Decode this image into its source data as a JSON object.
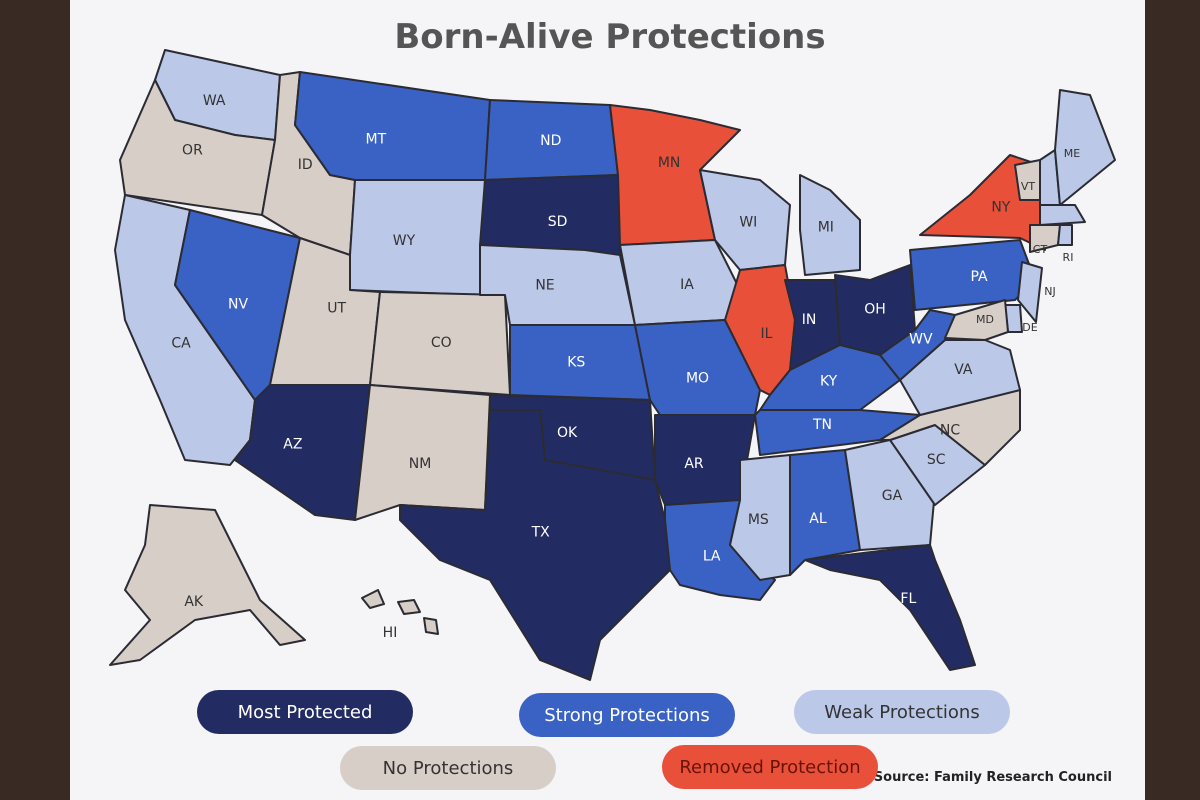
{
  "title": "Born-Alive Protections",
  "legend": [
    {
      "label": "Most Protected",
      "color": "#232c62"
    },
    {
      "label": "Strong Protections",
      "color": "#3a62c4"
    },
    {
      "label": "Weak Protections",
      "color": "#bcc8e8"
    },
    {
      "label": "No Protections",
      "color": "#d8cec8"
    },
    {
      "label": "Removed Protection",
      "color": "#e8503a"
    }
  ],
  "states": [
    {
      "label": "WA",
      "level": 2
    },
    {
      "label": "OR",
      "level": 3
    },
    {
      "label": "CA",
      "level": 2
    },
    {
      "label": "NV",
      "level": 1
    },
    {
      "label": "ID",
      "level": 3
    },
    {
      "label": "MT",
      "level": 1
    },
    {
      "label": "WY",
      "level": 2
    },
    {
      "label": "UT",
      "level": 3
    },
    {
      "label": "CO",
      "level": 3
    },
    {
      "label": "AZ",
      "level": 0
    },
    {
      "label": "NM",
      "level": 3
    },
    {
      "label": "ND",
      "level": 1
    },
    {
      "label": "SD",
      "level": 0
    },
    {
      "label": "NE",
      "level": 2
    },
    {
      "label": "KS",
      "level": 1
    },
    {
      "label": "OK",
      "level": 0
    },
    {
      "label": "TX",
      "level": 0
    },
    {
      "label": "MN",
      "level": 4
    },
    {
      "label": "IA",
      "level": 2
    },
    {
      "label": "MO",
      "level": 1
    },
    {
      "label": "AR",
      "level": 0
    },
    {
      "label": "LA",
      "level": 1
    },
    {
      "label": "WI",
      "level": 2
    },
    {
      "label": "IL",
      "level": 4
    },
    {
      "label": "MI",
      "level": 2
    },
    {
      "label": "IN",
      "level": 0
    },
    {
      "label": "OH",
      "level": 0
    },
    {
      "label": "KY",
      "level": 1
    },
    {
      "label": "TN",
      "level": 1
    },
    {
      "label": "MS",
      "level": 2
    },
    {
      "label": "AL",
      "level": 1
    },
    {
      "label": "GA",
      "level": 2
    },
    {
      "label": "FL",
      "level": 0
    },
    {
      "label": "SC",
      "level": 2
    },
    {
      "label": "NC",
      "level": 3
    },
    {
      "label": "VA",
      "level": 2
    },
    {
      "label": "WV",
      "level": 1
    },
    {
      "label": "PA",
      "level": 1
    },
    {
      "label": "NY",
      "level": 4
    },
    {
      "label": "NJ",
      "level": 2
    },
    {
      "label": "DE",
      "level": 2
    },
    {
      "label": "MD",
      "level": 3
    },
    {
      "label": "VT",
      "level": 3
    },
    {
      "label": "NH",
      "level": 2
    },
    {
      "label": "ME",
      "level": 2
    },
    {
      "label": "MA",
      "level": 2
    },
    {
      "label": "CT",
      "level": 3
    },
    {
      "label": "RI",
      "level": 2
    },
    {
      "label": "AK",
      "level": 3
    },
    {
      "label": "HI",
      "level": 3
    }
  ],
  "source": "Source: Family Research Council"
}
